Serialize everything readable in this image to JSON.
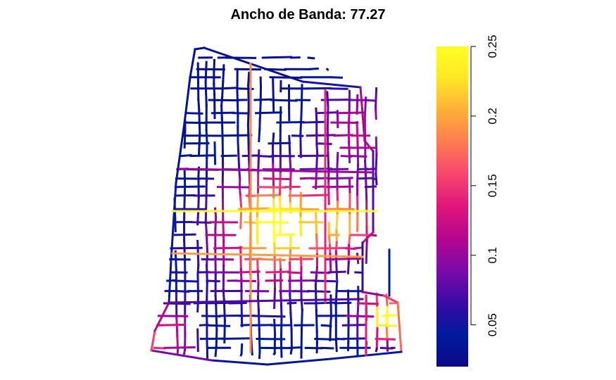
{
  "plot": {
    "title": "Ancho de Banda: 77.27"
  },
  "legend": {
    "min": 0.02,
    "max": 0.25,
    "ticks": [
      {
        "value": 0.05,
        "label": "0.05"
      },
      {
        "value": 0.1,
        "label": "0.1"
      },
      {
        "value": 0.15,
        "label": "0.15"
      },
      {
        "value": 0.2,
        "label": "0.2"
      },
      {
        "value": 0.25,
        "label": "0.25"
      }
    ],
    "colormap": [
      "#0d0887",
      "#001a9e",
      "#3a0aa6",
      "#7b0aa8",
      "#b5068f",
      "#e0167a",
      "#f8456e",
      "#fd7a52",
      "#feae37",
      "#fde725",
      "#ffff22"
    ]
  }
}
